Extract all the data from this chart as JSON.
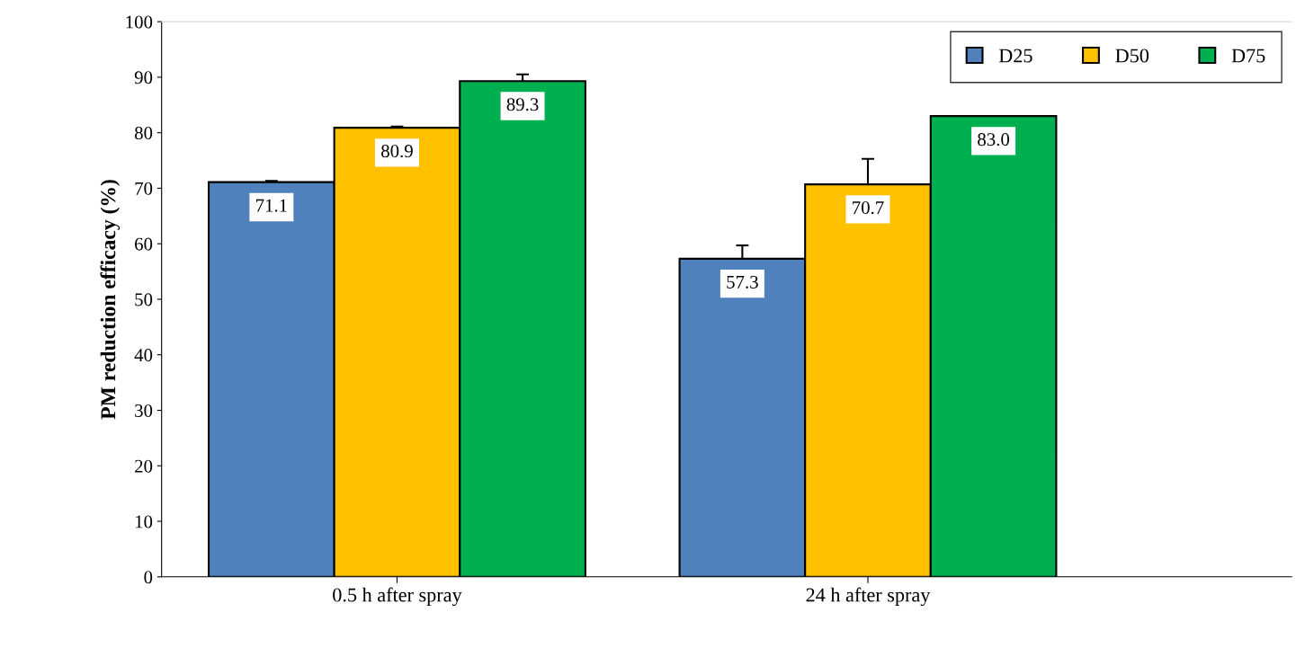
{
  "chart_data": {
    "type": "bar",
    "ylabel": "PM reduction efficacy (%)",
    "categories": [
      "0.5 h after spray",
      "24 h after spray"
    ],
    "series": [
      {
        "name": "D25",
        "color": "#4f81bd",
        "values": [
          71.1,
          57.3
        ],
        "value_labels": [
          "71.1",
          "57.3"
        ],
        "errors": [
          0.2,
          2.4
        ]
      },
      {
        "name": "D50",
        "color": "#ffc000",
        "values": [
          80.9,
          70.7
        ],
        "value_labels": [
          "80.9",
          "70.7"
        ],
        "errors": [
          0.2,
          4.6
        ]
      },
      {
        "name": "D75",
        "color": "#00b050",
        "values": [
          89.3,
          83.0
        ],
        "value_labels": [
          "89.3",
          "83.0"
        ],
        "errors": [
          1.2,
          null
        ]
      }
    ],
    "ylim": [
      0,
      100
    ],
    "yticks": [
      0,
      10,
      20,
      30,
      40,
      50,
      60,
      70,
      80,
      90,
      100
    ],
    "grid": false,
    "legend": "top right"
  }
}
